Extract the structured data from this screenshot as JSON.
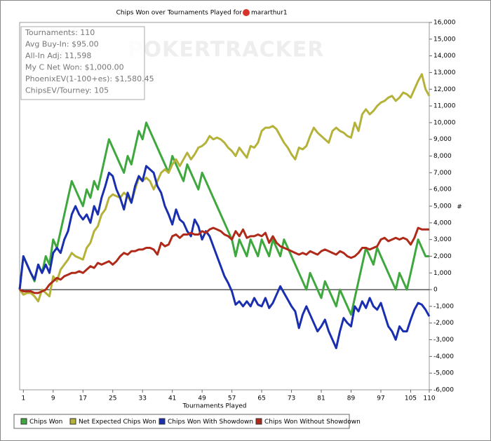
{
  "chart_data": {
    "type": "line",
    "title": "Chips Won over Tournaments Played for",
    "player": "mararthur1",
    "watermark": "POKERTRACKER",
    "x_label": "Tournaments Played",
    "y_label": "#",
    "stats": [
      "Tournaments: 110",
      "Avg Buy-In: $95.00",
      "All-In Adj: 11,598",
      "My C Net Won: $1,000.00",
      "PhoenixEV(1-100+es): $1,580.45",
      "ChipsEV/Tourney: 105"
    ],
    "x": [
      0,
      1,
      2,
      3,
      4,
      5,
      6,
      7,
      8,
      9,
      10,
      11,
      12,
      13,
      14,
      15,
      16,
      17,
      18,
      19,
      20,
      21,
      22,
      23,
      24,
      25,
      26,
      27,
      28,
      29,
      30,
      31,
      32,
      33,
      34,
      35,
      36,
      37,
      38,
      39,
      40,
      41,
      42,
      43,
      44,
      45,
      46,
      47,
      48,
      49,
      50,
      51,
      52,
      53,
      54,
      55,
      56,
      57,
      58,
      59,
      60,
      61,
      62,
      63,
      64,
      65,
      66,
      67,
      68,
      69,
      70,
      71,
      72,
      73,
      74,
      75,
      76,
      77,
      78,
      79,
      80,
      81,
      82,
      83,
      84,
      85,
      86,
      87,
      88,
      89,
      90,
      91,
      92,
      93,
      94,
      95,
      96,
      97,
      98,
      99,
      100,
      101,
      102,
      103,
      104,
      105,
      106,
      107,
      108,
      109,
      110
    ],
    "series": [
      {
        "name": "Chips Won",
        "color": "#3ea83e",
        "values": [
          0,
          2000,
          1500,
          1000,
          500,
          1500,
          1000,
          2000,
          1500,
          3000,
          2500,
          3500,
          4500,
          5500,
          6500,
          6000,
          5500,
          5000,
          6000,
          5500,
          6500,
          6000,
          7000,
          8000,
          9000,
          8500,
          8000,
          7500,
          7000,
          8000,
          7500,
          8500,
          9500,
          9000,
          10000,
          9500,
          9000,
          8500,
          8000,
          7500,
          7000,
          8000,
          7500,
          7000,
          6500,
          7500,
          7000,
          6500,
          6000,
          7000,
          6500,
          6000,
          5500,
          5000,
          4500,
          4000,
          3500,
          3000,
          2000,
          3000,
          2500,
          2000,
          3000,
          2500,
          2000,
          3000,
          2500,
          2000,
          3000,
          2500,
          2000,
          3000,
          2500,
          2000,
          1500,
          1000,
          500,
          0,
          1000,
          500,
          0,
          -500,
          500,
          0,
          -500,
          -1000,
          0,
          -500,
          -1000,
          -1500,
          -500,
          500,
          1500,
          2500,
          2000,
          1500,
          2500,
          2000,
          1500,
          1000,
          500,
          0,
          1000,
          500,
          0,
          1000,
          2000,
          3000,
          2500,
          2000,
          2000
        ]
      },
      {
        "name": "Net Expected Chips Won",
        "color": "#b5b23a",
        "values": [
          0,
          -300,
          -200,
          -200,
          -400,
          -700,
          0,
          -200,
          -400,
          800,
          500,
          1200,
          1500,
          1800,
          2200,
          2000,
          1900,
          1800,
          2500,
          2800,
          3500,
          3800,
          4500,
          4800,
          5500,
          5700,
          5600,
          5500,
          5800,
          5600,
          5200,
          6000,
          6700,
          6500,
          6700,
          6500,
          6000,
          6500,
          7000,
          7200,
          7000,
          7500,
          7800,
          7400,
          7800,
          8200,
          7800,
          8100,
          8500,
          8600,
          8800,
          9200,
          9000,
          9100,
          9000,
          8800,
          8500,
          8300,
          8000,
          8500,
          8200,
          7900,
          8600,
          8500,
          8800,
          9500,
          9700,
          9700,
          9800,
          9600,
          9200,
          8800,
          8500,
          8100,
          7800,
          8500,
          8400,
          8600,
          9200,
          9700,
          9400,
          9200,
          9000,
          8800,
          9500,
          9700,
          9500,
          9400,
          9200,
          9100,
          10000,
          9500,
          10500,
          10800,
          10500,
          10700,
          11000,
          11200,
          11300,
          11500,
          11600,
          11300,
          11500,
          11800,
          11700,
          11500,
          12000,
          12500,
          12900,
          12000,
          11600
        ]
      },
      {
        "name": "Chips Won With Showdown",
        "color": "#1a2fb0",
        "values": [
          0,
          2000,
          1500,
          1000,
          600,
          1500,
          1000,
          1500,
          1000,
          2200,
          2500,
          2200,
          3000,
          3500,
          4500,
          5000,
          4500,
          4200,
          4500,
          4000,
          5000,
          4500,
          5500,
          6200,
          7000,
          6800,
          6000,
          5500,
          4800,
          5800,
          5200,
          6200,
          6800,
          6500,
          7400,
          7200,
          7000,
          6200,
          5800,
          5000,
          4500,
          3900,
          4800,
          4200,
          4000,
          3500,
          3200,
          4200,
          3800,
          3000,
          3500,
          3200,
          2600,
          2000,
          1400,
          800,
          400,
          -100,
          -900,
          -700,
          -1000,
          -700,
          -1000,
          -500,
          -900,
          -1000,
          -500,
          -1100,
          -800,
          -300,
          200,
          -200,
          -600,
          -1000,
          -1300,
          -2300,
          -1500,
          -1000,
          -1500,
          -2000,
          -2500,
          -2200,
          -1800,
          -2500,
          -3000,
          -3500,
          -2500,
          -1700,
          -2000,
          -2200,
          -1000,
          -1300,
          -700,
          -1100,
          -500,
          -1000,
          -1200,
          -800,
          -1500,
          -2200,
          -2500,
          -3000,
          -2200,
          -2500,
          -2500,
          -1800,
          -1200,
          -800,
          -900,
          -1200,
          -1600
        ]
      },
      {
        "name": "Chips Won Without Showdown",
        "color": "#b02a1a",
        "values": [
          0,
          -100,
          -100,
          -100,
          -200,
          -200,
          -100,
          0,
          300,
          500,
          700,
          600,
          800,
          900,
          1000,
          1000,
          1100,
          1000,
          1200,
          1400,
          1300,
          1600,
          1500,
          1600,
          1700,
          1500,
          1700,
          2000,
          2200,
          2100,
          2300,
          2300,
          2400,
          2400,
          2500,
          2500,
          2400,
          2100,
          2800,
          2600,
          2700,
          3200,
          3300,
          3100,
          3300,
          3300,
          3400,
          3300,
          3300,
          3500,
          3400,
          3600,
          3700,
          3600,
          3500,
          3300,
          3200,
          3000,
          3500,
          3200,
          3600,
          3100,
          3200,
          3200,
          3300,
          3200,
          3400,
          2800,
          3200,
          2800,
          2600,
          2500,
          2400,
          2300,
          2200,
          2100,
          2200,
          2100,
          2300,
          2200,
          2100,
          2300,
          2400,
          2300,
          2200,
          2100,
          2300,
          2200,
          2000,
          1900,
          2000,
          2200,
          2500,
          2500,
          2400,
          2500,
          2600,
          3000,
          3100,
          2900,
          3000,
          3100,
          3000,
          3100,
          3000,
          2700,
          3100,
          3700,
          3600,
          3600,
          3600
        ]
      }
    ],
    "xlim": [
      0,
      110
    ],
    "xticks": [
      1,
      9,
      17,
      25,
      33,
      41,
      49,
      57,
      65,
      73,
      81,
      89,
      97,
      105,
      110
    ],
    "ylim": [
      -6000,
      16000
    ],
    "yticks": [
      {
        "value": -6000,
        "label": "-6,000"
      },
      {
        "value": -5000,
        "label": "-5,000"
      },
      {
        "value": -4000,
        "label": "-4,000"
      },
      {
        "value": -3000,
        "label": "-3,000"
      },
      {
        "value": -2000,
        "label": "-2,000"
      },
      {
        "value": -1000,
        "label": "-1,000"
      },
      0,
      {
        "value": 1000,
        "label": "1,000"
      },
      {
        "value": 2000,
        "label": "2,000"
      },
      {
        "value": 3000,
        "label": "3,000"
      },
      {
        "value": 4000,
        "label": "4,000"
      },
      {
        "value": 5000,
        "label": "5,000"
      },
      {
        "value": 6000,
        "label": "6,000"
      },
      {
        "value": 7000,
        "label": "7,000"
      },
      {
        "value": 8000,
        "label": "8,000"
      },
      {
        "value": 9000,
        "label": "9,000"
      },
      {
        "value": 10000,
        "label": "10,000"
      },
      {
        "value": 11000,
        "label": "11,000"
      },
      {
        "value": 12000,
        "label": "12,000"
      },
      {
        "value": 13000,
        "label": "13,000"
      },
      {
        "value": 14000,
        "label": "14,000"
      },
      {
        "value": 15000,
        "label": "15,000"
      },
      {
        "value": 16000,
        "label": "16,000"
      }
    ],
    "legend": "bottom"
  }
}
